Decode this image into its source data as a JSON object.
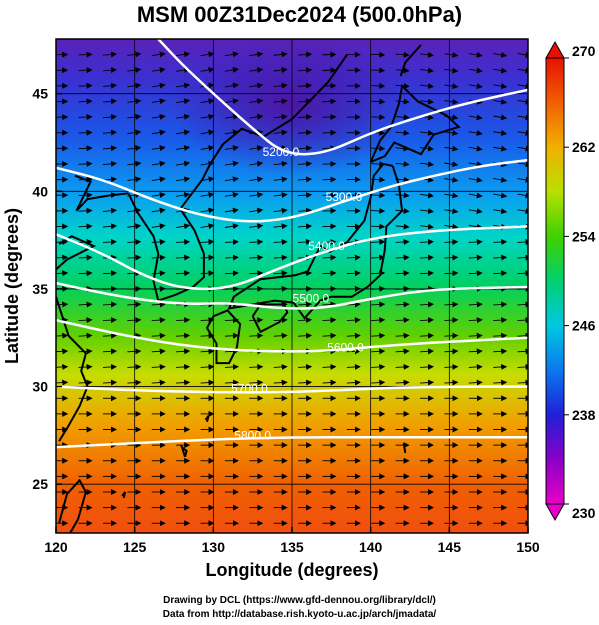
{
  "title": "MSM 00Z31Dec2024 (500.0hPa)",
  "map": {
    "xlabel": "Longitude (degrees)",
    "ylabel": "Latitude  (degrees)",
    "xlim": [
      120,
      150
    ],
    "ylim": [
      22.5,
      47.8
    ],
    "xticks": [
      120,
      125,
      130,
      135,
      140,
      145,
      150
    ],
    "yticks": [
      25,
      30,
      35,
      40,
      45
    ],
    "grid": true
  },
  "colorbar": {
    "min": 230,
    "max": 270,
    "ticks": [
      230,
      238,
      246,
      254,
      262,
      270
    ],
    "labels": [
      "230",
      "238",
      "246",
      "254",
      "262",
      "270"
    ],
    "colors": [
      "#e800c8",
      "#7a00c8",
      "#2228d8",
      "#0a7cf0",
      "#00d6d0",
      "#00d070",
      "#36d000",
      "#a8e000",
      "#e8d000",
      "#f09800",
      "#f05000",
      "#e81000"
    ]
  },
  "contours": [
    {
      "label": "5200.0",
      "label_lon": 134.3,
      "label_lat": 41.8
    },
    {
      "label": "5300.0",
      "label_lon": 138.3,
      "label_lat": 39.5
    },
    {
      "label": "5400.0",
      "label_lon": 137.2,
      "label_lat": 37.0
    },
    {
      "label": "5500.0",
      "label_lon": 136.2,
      "label_lat": 34.3
    },
    {
      "label": "5600.0",
      "label_lon": 138.4,
      "label_lat": 31.8
    },
    {
      "label": "5700.0",
      "label_lon": 132.3,
      "label_lat": 29.7
    },
    {
      "label": "5800.0",
      "label_lon": 132.5,
      "label_lat": 27.3
    }
  ],
  "credits": [
    "Drawing by DCL (https://www.gfd-dennou.org/library/dcl/)",
    "Data from http://database.rish.kyoto-u.ac.jp/arch/jmadata/"
  ]
}
